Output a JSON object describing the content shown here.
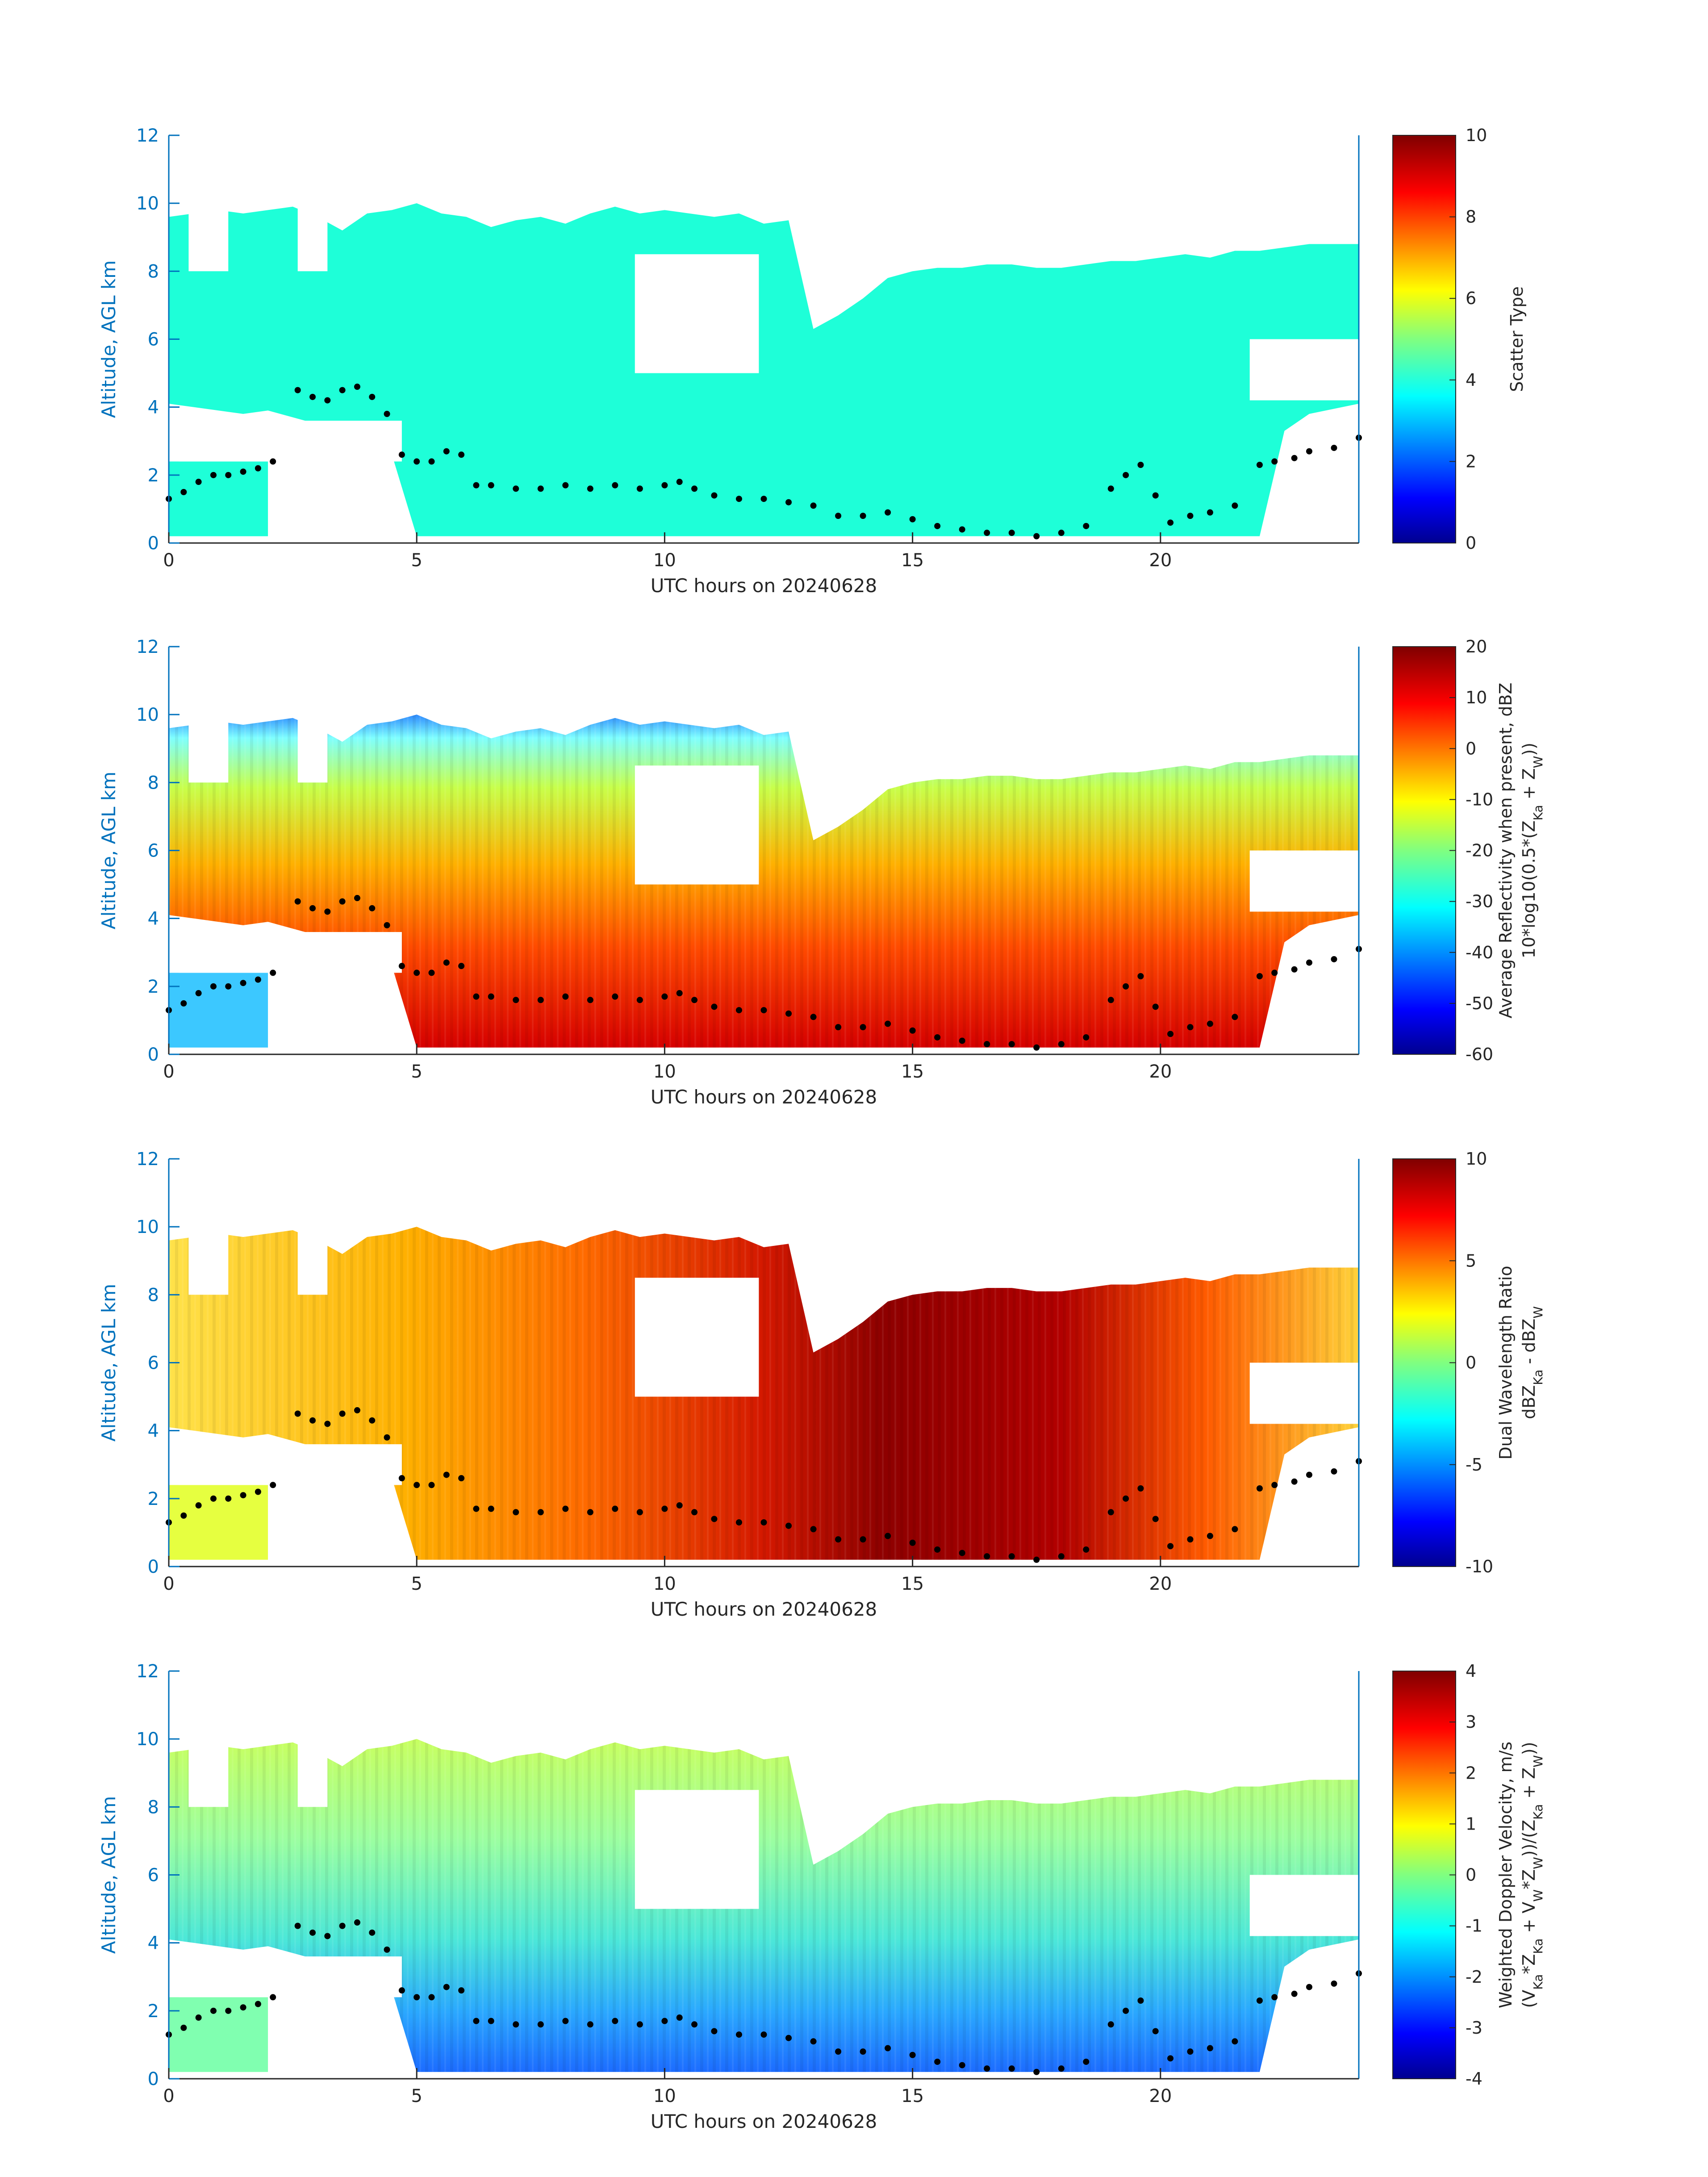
{
  "chart_data": [
    {
      "type": "heatmap",
      "xlabel": "UTC hours on 20240628",
      "ylabel": "Altitude, AGL km",
      "xlim": [
        0,
        24
      ],
      "ylim": [
        0,
        12
      ],
      "x_ticks": [
        "0",
        "5",
        "10",
        "15",
        "20"
      ],
      "y_ticks": [
        "0",
        "2",
        "4",
        "6",
        "8",
        "10",
        "12"
      ],
      "colorbar": {
        "label_lines": [
          "Scatter Type"
        ],
        "min": 0,
        "max": 10,
        "ticks": [
          "0",
          "2",
          "4",
          "6",
          "8",
          "10"
        ],
        "colormap": "jet"
      },
      "field_value": 4.2,
      "overlay_points": "boundary-layer height (black dots)"
    },
    {
      "type": "heatmap",
      "xlabel": "UTC hours on 20240628",
      "ylabel": "Altitude, AGL km",
      "xlim": [
        0,
        24
      ],
      "ylim": [
        0,
        12
      ],
      "x_ticks": [
        "0",
        "5",
        "10",
        "15",
        "20"
      ],
      "y_ticks": [
        "0",
        "2",
        "4",
        "6",
        "8",
        "10",
        "12"
      ],
      "colorbar": {
        "label_lines": [
          "Average Reflectivity when present, dBZ",
          "10*log10(0.5*(Z_Ka + Z_W))"
        ],
        "min": -60,
        "max": 20,
        "ticks": [
          "-60",
          "-50",
          "-40",
          "-30",
          "-20",
          "-10",
          "0",
          "10",
          "20"
        ],
        "colormap": "jet"
      }
    },
    {
      "type": "heatmap",
      "xlabel": "UTC hours on 20240628",
      "ylabel": "Altitude, AGL km",
      "xlim": [
        0,
        24
      ],
      "ylim": [
        0,
        12
      ],
      "x_ticks": [
        "0",
        "5",
        "10",
        "15",
        "20"
      ],
      "y_ticks": [
        "0",
        "2",
        "4",
        "6",
        "8",
        "10",
        "12"
      ],
      "colorbar": {
        "label_lines": [
          "Dual Wavelength Ratio",
          "dBZ_Ka - dBZ_W"
        ],
        "min": -10,
        "max": 10,
        "ticks": [
          "-10",
          "-5",
          "0",
          "5",
          "10"
        ],
        "colormap": "jet"
      }
    },
    {
      "type": "heatmap",
      "xlabel": "UTC hours on 20240628",
      "ylabel": "Altitude, AGL km",
      "xlim": [
        0,
        24
      ],
      "ylim": [
        0,
        12
      ],
      "x_ticks": [
        "0",
        "5",
        "10",
        "15",
        "20"
      ],
      "y_ticks": [
        "0",
        "2",
        "4",
        "6",
        "8",
        "10",
        "12"
      ],
      "colorbar": {
        "label_lines": [
          "Weighted Doppler Velocity, m/s",
          "(V_Ka*Z_Ka + V_W*Z_W))/(Z_Ka + Z_W))"
        ],
        "min": -4,
        "max": 4,
        "ticks": [
          "-4",
          "-3",
          "-2",
          "-1",
          "0",
          "1",
          "2",
          "3",
          "4"
        ],
        "colormap": "jet"
      }
    }
  ],
  "cloud_extent": {
    "top_km": [
      [
        0,
        9.6
      ],
      [
        0.5,
        9.7
      ],
      [
        1,
        9.8
      ],
      [
        1.5,
        9.7
      ],
      [
        2,
        9.8
      ],
      [
        2.5,
        9.9
      ],
      [
        3,
        9.6
      ],
      [
        3.5,
        9.2
      ],
      [
        4,
        9.7
      ],
      [
        4.5,
        9.8
      ],
      [
        5,
        10.0
      ],
      [
        5.5,
        9.7
      ],
      [
        6,
        9.6
      ],
      [
        6.5,
        9.3
      ],
      [
        7,
        9.5
      ],
      [
        7.5,
        9.6
      ],
      [
        8,
        9.4
      ],
      [
        8.5,
        9.7
      ],
      [
        9,
        9.9
      ],
      [
        9.5,
        9.7
      ],
      [
        10,
        9.8
      ],
      [
        10.5,
        9.7
      ],
      [
        11,
        9.6
      ],
      [
        11.5,
        9.7
      ],
      [
        12,
        9.4
      ],
      [
        12.5,
        9.5
      ],
      [
        13,
        6.3
      ],
      [
        13.5,
        6.7
      ],
      [
        14,
        7.2
      ],
      [
        14.5,
        7.8
      ],
      [
        15,
        8.0
      ],
      [
        15.5,
        8.1
      ],
      [
        16,
        8.1
      ],
      [
        16.5,
        8.2
      ],
      [
        17,
        8.2
      ],
      [
        17.5,
        8.1
      ],
      [
        18,
        8.1
      ],
      [
        18.5,
        8.2
      ],
      [
        19,
        8.3
      ],
      [
        19.5,
        8.3
      ],
      [
        20,
        8.4
      ],
      [
        20.5,
        8.5
      ],
      [
        21,
        8.4
      ],
      [
        21.5,
        8.6
      ],
      [
        22,
        8.6
      ],
      [
        22.5,
        8.7
      ],
      [
        23,
        8.8
      ],
      [
        23.5,
        8.8
      ],
      [
        24,
        8.8
      ]
    ],
    "base_km": [
      [
        0,
        4.1
      ],
      [
        0.5,
        4.0
      ],
      [
        1,
        3.9
      ],
      [
        1.5,
        3.8
      ],
      [
        2,
        3.9
      ],
      [
        2.5,
        3.7
      ],
      [
        3,
        3.5
      ],
      [
        3.5,
        3.3
      ],
      [
        4,
        3.0
      ],
      [
        4.5,
        2.6
      ],
      [
        5,
        0.2
      ],
      [
        10,
        0.2
      ],
      [
        15,
        0.2
      ],
      [
        20,
        0.2
      ],
      [
        22,
        0.2
      ],
      [
        22.5,
        3.3
      ],
      [
        23,
        3.8
      ],
      [
        24,
        4.1
      ]
    ],
    "gaps": [
      {
        "x": [
          0.4,
          1.2
        ],
        "y": [
          8.0,
          10.0
        ]
      },
      {
        "x": [
          2.6,
          3.2
        ],
        "y": [
          8.0,
          10.0
        ]
      },
      {
        "x": [
          9.4,
          11.9
        ],
        "y": [
          5.0,
          8.5
        ]
      },
      {
        "x": [
          21.8,
          24.0
        ],
        "y": [
          4.2,
          6.0
        ]
      }
    ]
  },
  "boundary_layer_km": [
    [
      0.0,
      1.3
    ],
    [
      0.3,
      1.5
    ],
    [
      0.6,
      1.8
    ],
    [
      0.9,
      2.0
    ],
    [
      1.2,
      2.0
    ],
    [
      1.5,
      2.1
    ],
    [
      1.8,
      2.2
    ],
    [
      2.1,
      2.4
    ],
    [
      2.6,
      4.5
    ],
    [
      2.9,
      4.3
    ],
    [
      3.2,
      4.2
    ],
    [
      3.5,
      4.5
    ],
    [
      3.8,
      4.6
    ],
    [
      4.1,
      4.3
    ],
    [
      4.4,
      3.8
    ],
    [
      4.7,
      2.6
    ],
    [
      5.0,
      2.4
    ],
    [
      5.3,
      2.4
    ],
    [
      5.6,
      2.7
    ],
    [
      5.9,
      2.6
    ],
    [
      6.2,
      1.7
    ],
    [
      6.5,
      1.7
    ],
    [
      7.0,
      1.6
    ],
    [
      7.5,
      1.6
    ],
    [
      8.0,
      1.7
    ],
    [
      8.5,
      1.6
    ],
    [
      9.0,
      1.7
    ],
    [
      9.5,
      1.6
    ],
    [
      10.0,
      1.7
    ],
    [
      10.3,
      1.8
    ],
    [
      10.6,
      1.6
    ],
    [
      11.0,
      1.4
    ],
    [
      11.5,
      1.3
    ],
    [
      12.0,
      1.3
    ],
    [
      12.5,
      1.2
    ],
    [
      13.0,
      1.1
    ],
    [
      13.5,
      0.8
    ],
    [
      14.0,
      0.8
    ],
    [
      14.5,
      0.9
    ],
    [
      15.0,
      0.7
    ],
    [
      15.5,
      0.5
    ],
    [
      16.0,
      0.4
    ],
    [
      16.5,
      0.3
    ],
    [
      17.0,
      0.3
    ],
    [
      17.5,
      0.2
    ],
    [
      18.0,
      0.3
    ],
    [
      18.5,
      0.5
    ],
    [
      19.0,
      1.6
    ],
    [
      19.3,
      2.0
    ],
    [
      19.6,
      2.3
    ],
    [
      19.9,
      1.4
    ],
    [
      20.2,
      0.6
    ],
    [
      20.6,
      0.8
    ],
    [
      21.0,
      0.9
    ],
    [
      21.5,
      1.1
    ],
    [
      22.0,
      2.3
    ],
    [
      22.3,
      2.4
    ],
    [
      22.7,
      2.5
    ],
    [
      23.0,
      2.7
    ],
    [
      23.5,
      2.8
    ],
    [
      24.0,
      3.1
    ]
  ]
}
